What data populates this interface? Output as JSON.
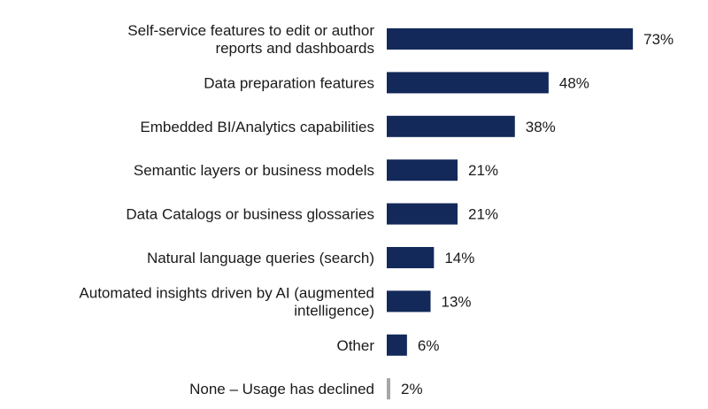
{
  "chart_data": {
    "type": "bar",
    "orientation": "horizontal",
    "categories": [
      [
        "Self-service features to edit or author",
        "reports and dashboards"
      ],
      [
        "Data preparation features"
      ],
      [
        "Embedded BI/Analytics capabilities"
      ],
      [
        "Semantic layers or business models"
      ],
      [
        "Data Catalogs or business glossaries"
      ],
      [
        "Natural language queries (search)"
      ],
      [
        "Automated insights driven by AI (augmented",
        "intelligence)"
      ],
      [
        "Other"
      ],
      [
        "None – Usage has declined"
      ]
    ],
    "values": [
      73,
      48,
      38,
      21,
      21,
      14,
      13,
      6,
      2
    ],
    "value_labels": [
      "73%",
      "48%",
      "38%",
      "21%",
      "21%",
      "14%",
      "13%",
      "6%",
      "2%"
    ],
    "bar_colors": [
      "#13295a",
      "#13295a",
      "#13295a",
      "#13295a",
      "#13295a",
      "#13295a",
      "#13295a",
      "#13295a",
      "#a6a6a6"
    ],
    "xlim": [
      0,
      100
    ],
    "grid": false,
    "legend": "none"
  }
}
